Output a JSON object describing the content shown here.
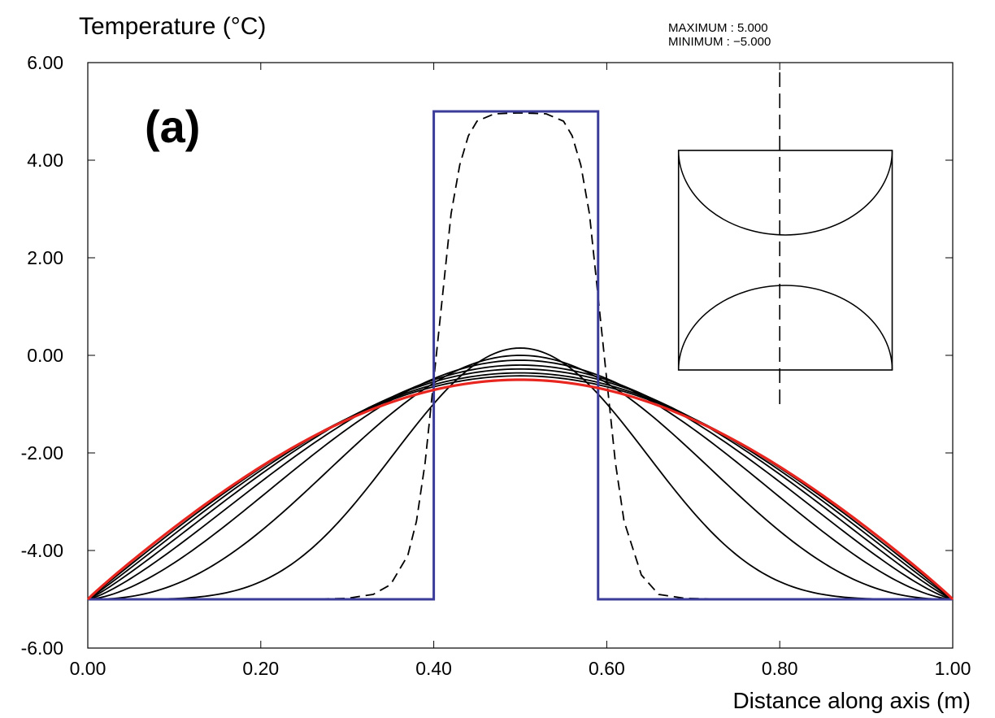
{
  "chart_data": {
    "type": "line",
    "ylabel": "Temperature (°C)",
    "xlabel": "Distance along axis (m)",
    "panel_label": "(a)",
    "stats": {
      "maximum": "MAXIMUM :   5.000",
      "minimum": "MINIMUM :  −5.000"
    },
    "xlim": [
      0,
      1
    ],
    "ylim": [
      -6,
      6
    ],
    "x_ticks": [
      "0.00",
      "0.20",
      "0.40",
      "0.60",
      "0.80",
      "1.00"
    ],
    "y_ticks": [
      "6.00",
      "4.00",
      "2.00",
      "0.00",
      "-2.00",
      "-4.00",
      "-6.00"
    ],
    "colors": {
      "initial": "#3b3b9a",
      "final": "#e8251f",
      "intermediate": "#000000"
    },
    "initial_profile": {
      "x": [
        0.0,
        0.4,
        0.4,
        0.59,
        0.59,
        1.0
      ],
      "y": [
        -5,
        -5,
        5,
        5,
        -5,
        -5
      ]
    },
    "first_step": {
      "x": [
        0.0,
        0.25,
        0.3,
        0.33,
        0.35,
        0.37,
        0.38,
        0.39,
        0.4,
        0.41,
        0.42,
        0.43,
        0.44,
        0.45,
        0.47,
        0.5,
        0.53,
        0.55,
        0.56,
        0.57,
        0.58,
        0.59,
        0.6,
        0.61,
        0.62,
        0.64,
        0.66,
        0.69,
        0.75,
        1.0
      ],
      "y": [
        -5.0,
        -5.0,
        -4.98,
        -4.9,
        -4.7,
        -4.1,
        -3.4,
        -2.2,
        -0.5,
        1.2,
        2.9,
        3.9,
        4.5,
        4.8,
        4.95,
        4.97,
        4.95,
        4.8,
        4.5,
        3.9,
        2.9,
        1.2,
        -0.5,
        -2.2,
        -3.4,
        -4.5,
        -4.9,
        -4.98,
        -5.0,
        -5.0
      ]
    },
    "intermediate_peaks": [
      0.15,
      0.0,
      -0.1,
      -0.2,
      -0.28,
      -0.36,
      -0.42
    ],
    "intermediate_exponents": [
      5.0,
      2.4,
      1.6,
      1.3,
      1.15,
      1.06,
      1.0
    ],
    "final_profile": {
      "peak": -0.5,
      "exponent": 0.95
    },
    "inset": {
      "x_range": [
        0.683,
        0.93
      ],
      "y_range": [
        -0.3,
        4.2
      ],
      "divider_x": 0.8,
      "divider_y_range": [
        -1.1,
        5.8
      ]
    }
  }
}
